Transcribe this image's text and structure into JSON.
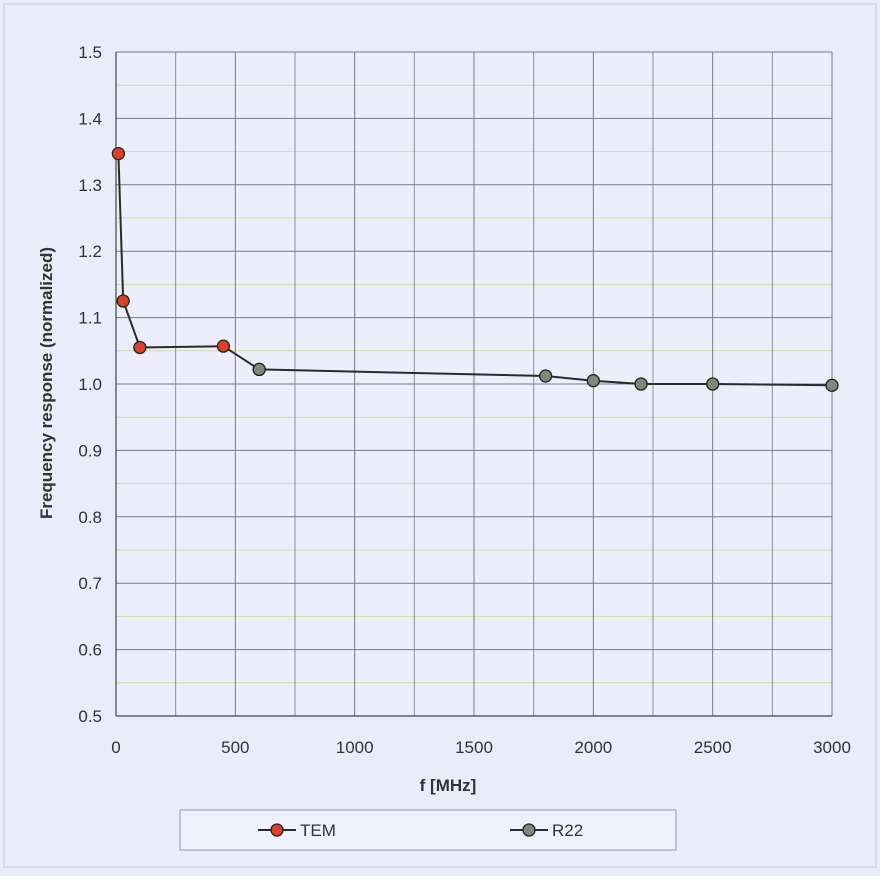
{
  "chart_data": {
    "type": "line",
    "title": "",
    "xlabel": "f [MHz]",
    "ylabel": "Frequency response (normalized)",
    "xlim": [
      0,
      3000
    ],
    "ylim": [
      0.5,
      1.5
    ],
    "x_ticks": [
      "0",
      "500",
      "1000",
      "1500",
      "2000",
      "2500",
      "3000"
    ],
    "x_tick_values": [
      0,
      500,
      1000,
      1500,
      2000,
      2500,
      3000
    ],
    "y_ticks": [
      "0.5",
      "0.6",
      "0.7",
      "0.8",
      "0.9",
      "1.0",
      "1.1",
      "1.2",
      "1.3",
      "1.4",
      "1.5"
    ],
    "y_tick_values": [
      0.5,
      0.6,
      0.7,
      0.8,
      0.9,
      1.0,
      1.1,
      1.2,
      1.3,
      1.4,
      1.5
    ],
    "grid": true,
    "legend_position": "bottom",
    "series": [
      {
        "name": "TEM",
        "color": "#d9412b",
        "line_color": "#2a2a2a",
        "marker": "circle",
        "x": [
          10,
          30,
          100,
          450,
          600
        ],
        "y": [
          1.347,
          1.125,
          1.055,
          1.057,
          1.022
        ]
      },
      {
        "name": "R22",
        "color": "#7d8a7a",
        "line_color": "#2a2a2a",
        "marker": "circle",
        "x": [
          600,
          1800,
          2000,
          2200,
          2500,
          3000
        ],
        "y": [
          1.022,
          1.012,
          1.005,
          1.0,
          1.0,
          0.998
        ]
      }
    ]
  }
}
